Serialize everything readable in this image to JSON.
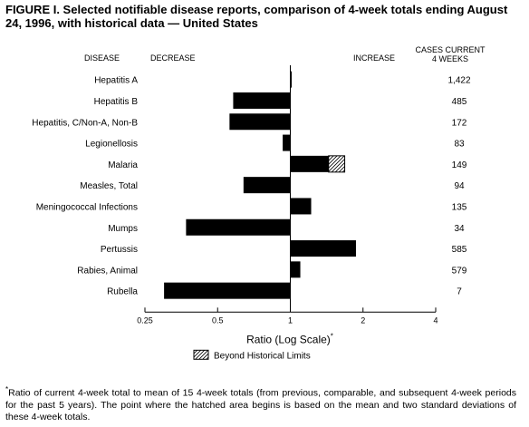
{
  "title": "FIGURE I. Selected notifiable disease reports, comparison of 4-week totals ending August 24, 1996, with historical data — United States",
  "headers": {
    "disease": "DISEASE",
    "decrease": "DECREASE",
    "increase": "INCREASE",
    "cases_line1": "CASES CURRENT",
    "cases_line2": "4 WEEKS"
  },
  "legend": {
    "label": "Beyond Historical Limits"
  },
  "footnote": {
    "marker": "*",
    "text": "Ratio of current 4-week total to mean of 15 4-week totals (from previous, comparable, and subsequent 4-week periods for the past 5 years). The point where the hatched area begins is based on the mean and two standard deviations of these 4-week totals."
  },
  "chart_data": {
    "type": "bar",
    "orientation": "horizontal",
    "xscale": "log",
    "baseline": 1,
    "xlim": [
      0.25,
      4
    ],
    "xticks": [
      0.25,
      0.5,
      1,
      2,
      4
    ],
    "xtick_labels": [
      "0.25",
      "0.5",
      "1",
      "2",
      "4"
    ],
    "xlabel": "Ratio (Log Scale)",
    "xlabel_marker": "*",
    "categories": [
      "Hepatitis A",
      "Hepatitis B",
      "Hepatitis, C/Non-A, Non-B",
      "Legionellosis",
      "Malaria",
      "Measles, Total",
      "Meningococcal Infections",
      "Mumps",
      "Pertussis",
      "Rabies, Animal",
      "Rubella"
    ],
    "values": [
      1.01,
      0.58,
      0.56,
      0.93,
      1.68,
      0.64,
      1.22,
      0.37,
      1.87,
      1.1,
      0.3
    ],
    "hatched_from": [
      null,
      null,
      null,
      null,
      1.44,
      null,
      null,
      null,
      null,
      null,
      null
    ],
    "cases": [
      "1,422",
      "485",
      "172",
      "83",
      "149",
      "94",
      "135",
      "34",
      "585",
      "579",
      "7"
    ],
    "colors": {
      "bar": "#000000",
      "hatch": "#000000",
      "background": "#ffffff"
    }
  }
}
